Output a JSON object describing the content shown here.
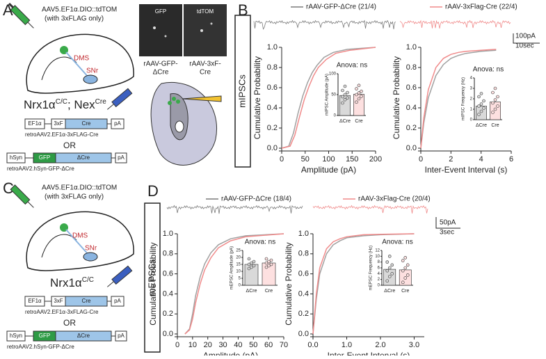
{
  "panel_labels": [
    "A",
    "B",
    "C",
    "D"
  ],
  "panel_a": {
    "virus": "AAV5.EF1α.DIO::tdTOM",
    "virus_note": "(with 3xFLAG only)",
    "region_1": "DMS",
    "region_2": "SNr",
    "genotype": "Nrx1α",
    "genotype_sup": "C/C",
    "genotype_2": "; Nex",
    "genotype_2_sup": "Cre",
    "construct_1": {
      "parts": [
        "EF1α",
        "3xF",
        "Cre",
        "pA"
      ],
      "name": "retroAAV2.EF1α-3xFLAG-Cre"
    },
    "or": "OR",
    "construct_2": {
      "parts": [
        "hSyn",
        "GFP",
        "ΔCre",
        "pA"
      ],
      "name": "retroAAV2.hSyn-GFP-ΔCre"
    },
    "image_labels": [
      "GFP",
      "tdTOM"
    ],
    "image_captions": [
      [
        "rAAV-GFP-",
        "ΔCre"
      ],
      [
        "rAAV-3xF-",
        "Cre"
      ]
    ]
  },
  "panel_b": {
    "recording": "mIPSCs",
    "legend": [
      {
        "name": "rAAV-GFP-ΔCre (21/4)",
        "color": "#7a7a7a"
      },
      {
        "name": "rAAV-3xFlag-Cre (22/4)",
        "color": "#f08a8a"
      }
    ],
    "scale_bar": [
      "100pA",
      "10sec"
    ]
  },
  "panel_c": {
    "virus": "AAV5.EF1α.DIO::tdTOM",
    "virus_note": "(with 3xFLAG only)",
    "region_1": "DMS",
    "region_2": "SNr",
    "genotype": "Nrx1α",
    "genotype_sup": "C/C",
    "construct_1": {
      "parts": [
        "EF1α",
        "3xF",
        "Cre",
        "pA"
      ],
      "name": "retroAAV2.EF1α-3xFLAG-Cre"
    },
    "or": "OR",
    "construct_2": {
      "parts": [
        "hSyn",
        "GFP",
        "ΔCre",
        "pA"
      ],
      "name": "retroAAV2.hSyn-GFP-ΔCre"
    }
  },
  "panel_d": {
    "recording": "mEPSCs",
    "legend": [
      {
        "name": "rAAV-GFP-ΔCre (18/4)",
        "color": "#7a7a7a"
      },
      {
        "name": "rAAV-3xFlag-Cre (20/4)",
        "color": "#f08a8a"
      }
    ],
    "scale_bar": [
      "50pA",
      "3sec"
    ]
  },
  "chart_data": [
    {
      "type": "line",
      "xlabel": "Amplitude (pA)",
      "ylabel": "Cumulative Probability",
      "xlim": [
        0,
        200
      ],
      "xticks": [
        0,
        50,
        100,
        150,
        200
      ],
      "ylim": [
        0,
        1
      ],
      "yticks": [
        {
          "value": 0,
          "label": "0.0"
        },
        0.2,
        0.4,
        0.6,
        0.8,
        {
          "value": 1,
          "label": "1.0"
        }
      ],
      "series": [
        {
          "color": "#a0a0a0",
          "x": [
            0,
            15,
            25,
            35,
            45,
            55,
            65,
            75,
            90,
            110,
            140,
            200
          ],
          "y": [
            0,
            0.02,
            0.15,
            0.35,
            0.52,
            0.65,
            0.75,
            0.82,
            0.9,
            0.95,
            0.98,
            1
          ]
        },
        {
          "color": "#f08a8a",
          "x": [
            0,
            18,
            28,
            38,
            48,
            58,
            68,
            78,
            95,
            115,
            145,
            200
          ],
          "y": [
            0,
            0.02,
            0.13,
            0.31,
            0.48,
            0.61,
            0.72,
            0.8,
            0.88,
            0.94,
            0.97,
            1
          ]
        }
      ]
    },
    {
      "type": "bar",
      "ylabel": "mIPSC Amplitude (pA)",
      "annotation": "Anova: ns",
      "categories": [
        "ΔCre",
        "Cre"
      ],
      "values": [
        48,
        51
      ],
      "colors": [
        "#d9d9d9",
        "#fde0e0"
      ],
      "ylim": [
        0,
        100
      ],
      "yticks": [
        0,
        50,
        100
      ],
      "points": [
        [
          30,
          38,
          42,
          45,
          50,
          55,
          60,
          70
        ],
        [
          32,
          40,
          46,
          50,
          54,
          58,
          64,
          72
        ]
      ]
    },
    {
      "type": "line",
      "xlabel": "Inter-Event Interval (s)",
      "ylabel": "Cumulative Probability",
      "xlim": [
        0,
        6
      ],
      "xticks": [
        0,
        2,
        4,
        6
      ],
      "ylim": [
        0,
        1
      ],
      "yticks": [
        {
          "value": 0,
          "label": "0.0"
        },
        0.2,
        0.4,
        0.6,
        0.8,
        {
          "value": 1,
          "label": "1.0"
        }
      ],
      "series": [
        {
          "color": "#a0a0a0",
          "x": [
            0,
            0.2,
            0.5,
            1,
            1.5,
            2,
            2.5,
            3,
            4,
            5
          ],
          "y": [
            0,
            0.25,
            0.5,
            0.72,
            0.83,
            0.89,
            0.92,
            0.94,
            0.96,
            0.97
          ]
        },
        {
          "color": "#f08a8a",
          "x": [
            0,
            0.2,
            0.5,
            1,
            1.5,
            2,
            2.5,
            3,
            4,
            5
          ],
          "y": [
            0,
            0.3,
            0.58,
            0.8,
            0.89,
            0.93,
            0.95,
            0.96,
            0.97,
            0.98
          ]
        }
      ]
    },
    {
      "type": "bar",
      "ylabel": "mIPSC Frequency (Hz)",
      "annotation": "Anova: ns",
      "categories": [
        "ΔCre",
        "Cre"
      ],
      "values": [
        1.3,
        1.7
      ],
      "colors": [
        "#d9d9d9",
        "#fde0e0"
      ],
      "ylim": [
        0,
        4
      ],
      "yticks": [
        0,
        1,
        2,
        3,
        4
      ],
      "points": [
        [
          0.5,
          0.8,
          1.1,
          1.3,
          1.5,
          1.8,
          2.2,
          2.5
        ],
        [
          0.7,
          1.0,
          1.3,
          1.6,
          1.9,
          2.2,
          2.6,
          3.0
        ]
      ]
    },
    {
      "type": "line",
      "xlabel": "Amplitude (pA)",
      "ylabel": "Cumulative Probability",
      "xlim": [
        0,
        70
      ],
      "xticks": [
        0,
        10,
        20,
        30,
        40,
        50,
        60,
        70
      ],
      "ylim": [
        0,
        1
      ],
      "yticks": [
        {
          "value": 0,
          "label": "0.0"
        },
        0.2,
        0.4,
        0.6,
        0.8,
        {
          "value": 1,
          "label": "1.0"
        }
      ],
      "series": [
        {
          "color": "#a0a0a0",
          "x": [
            5,
            8,
            10,
            12,
            15,
            18,
            22,
            27,
            35,
            45,
            70
          ],
          "y": [
            0,
            0.05,
            0.2,
            0.38,
            0.57,
            0.7,
            0.81,
            0.89,
            0.95,
            0.98,
            1
          ]
        },
        {
          "color": "#f08a8a",
          "x": [
            5,
            8,
            10,
            12,
            15,
            18,
            22,
            27,
            35,
            45,
            70
          ],
          "y": [
            0,
            0.04,
            0.15,
            0.31,
            0.5,
            0.64,
            0.76,
            0.86,
            0.93,
            0.97,
            1
          ]
        }
      ]
    },
    {
      "type": "bar",
      "ylabel": "mEPSC Amplitude (pA)",
      "annotation": "Anova: ns",
      "categories": [
        "ΔCre",
        "Cre"
      ],
      "values": [
        15,
        16
      ],
      "colors": [
        "#d9d9d9",
        "#fde0e0"
      ],
      "ylim": [
        0,
        25
      ],
      "yticks": [
        0,
        5,
        10,
        15,
        20,
        25
      ],
      "points": [
        [
          12,
          13,
          14,
          15,
          16,
          17,
          19
        ],
        [
          13,
          14,
          15,
          16,
          17,
          18,
          19
        ]
      ]
    },
    {
      "type": "line",
      "xlabel": "Inter-Event Interval (s)",
      "ylabel": "Cumulative Probability",
      "xlim": [
        0,
        3.3
      ],
      "xticks": [
        {
          "value": 0,
          "label": "0.0"
        },
        {
          "value": 1,
          "label": "1.0"
        },
        {
          "value": 2,
          "label": "2.0"
        },
        {
          "value": 3,
          "label": "3.0"
        }
      ],
      "ylim": [
        0,
        1
      ],
      "yticks": [
        {
          "value": 0,
          "label": "0.0"
        },
        0.2,
        0.4,
        0.6,
        0.8,
        {
          "value": 1,
          "label": "1.0"
        }
      ],
      "series": [
        {
          "color": "#a0a0a0",
          "x": [
            0,
            0.1,
            0.2,
            0.4,
            0.6,
            0.8,
            1,
            1.5,
            2,
            3
          ],
          "y": [
            0,
            0.35,
            0.6,
            0.8,
            0.89,
            0.93,
            0.96,
            0.98,
            0.99,
            1
          ]
        },
        {
          "color": "#f08a8a",
          "x": [
            0,
            0.1,
            0.2,
            0.4,
            0.6,
            0.8,
            1,
            1.5,
            2,
            3
          ],
          "y": [
            0,
            0.4,
            0.66,
            0.85,
            0.92,
            0.95,
            0.97,
            0.99,
            0.995,
            1
          ]
        }
      ]
    },
    {
      "type": "bar",
      "ylabel": "mEPSC Frequency (Hz)",
      "annotation": "Anova: ns",
      "categories": [
        "ΔCre",
        "Cre"
      ],
      "values": [
        5.5,
        5.3
      ],
      "colors": [
        "#d9d9d9",
        "#fde0e0"
      ],
      "ylim": [
        0,
        12
      ],
      "yticks": [
        0,
        2,
        4,
        6,
        8,
        10,
        12
      ],
      "points": [
        [
          1.5,
          3,
          4,
          5,
          6,
          7,
          8,
          10
        ],
        [
          1,
          2.5,
          3.5,
          5,
          6,
          7,
          8.5,
          9.5
        ]
      ]
    }
  ]
}
